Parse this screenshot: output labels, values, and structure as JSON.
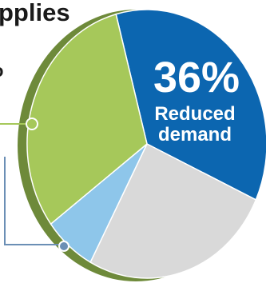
{
  "heading": "pplies",
  "edge_glyph": "o",
  "chart_data": {
    "type": "pie",
    "legend": "none",
    "slices": [
      {
        "label": "Reduced demand",
        "value": 36,
        "value_text": "36%",
        "color": "#0c66b0"
      },
      {
        "label": "",
        "value": 26,
        "value_text": "",
        "color": "#d9d9d9"
      },
      {
        "label": "",
        "value": 7,
        "value_text": "",
        "color": "#8ec6ea"
      },
      {
        "label": "",
        "value": 31,
        "value_text": "",
        "color": "#a6c85a"
      }
    ],
    "rim_color": "#6e8a3a",
    "callout_color": "#6b8fb5",
    "callout_point_color": "#a6c85a"
  },
  "slice_label_lines": [
    "Reduced",
    "demand"
  ]
}
